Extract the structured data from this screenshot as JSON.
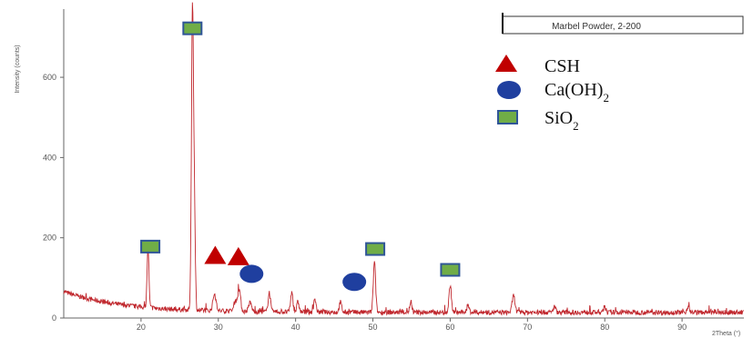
{
  "chart_data": {
    "type": "line",
    "title": "Marbel Powder, 2-200",
    "xlabel": "2Theta (°)",
    "ylabel": "Intensity (counts)",
    "xlim": [
      10,
      98
    ],
    "ylim": [
      0,
      770
    ],
    "xticks": [
      20,
      30,
      40,
      50,
      60,
      70,
      80,
      90
    ],
    "yticks": [
      0,
      200,
      400,
      600
    ],
    "grid": false,
    "legend_position": "top-right",
    "colors": {
      "trace": "#c0272d",
      "csh": "#c00000",
      "caoh2": "#1f3f9f",
      "sio2_fill": "#70ad47",
      "sio2_border": "#2f5597"
    },
    "legend": [
      {
        "marker": "triangle",
        "label": "CSH",
        "sub": ""
      },
      {
        "marker": "circle",
        "label": "Ca(OH)",
        "sub": "2"
      },
      {
        "marker": "square",
        "label": "SiO",
        "sub": "2"
      }
    ],
    "peaks": [
      {
        "x": 20.9,
        "y": 150,
        "w": 0.12
      },
      {
        "x": 26.65,
        "y": 740,
        "w": 0.13
      },
      {
        "x": 26.9,
        "y": 240,
        "w": 0.12
      },
      {
        "x": 29.5,
        "y": 42,
        "w": 0.2
      },
      {
        "x": 32.2,
        "y": 25,
        "w": 0.2
      },
      {
        "x": 32.7,
        "y": 55,
        "w": 0.18
      },
      {
        "x": 34.1,
        "y": 22,
        "w": 0.2
      },
      {
        "x": 36.6,
        "y": 48,
        "w": 0.15
      },
      {
        "x": 39.5,
        "y": 48,
        "w": 0.15
      },
      {
        "x": 40.3,
        "y": 25,
        "w": 0.15
      },
      {
        "x": 42.5,
        "y": 32,
        "w": 0.15
      },
      {
        "x": 45.8,
        "y": 25,
        "w": 0.15
      },
      {
        "x": 50.2,
        "y": 125,
        "w": 0.15
      },
      {
        "x": 54.9,
        "y": 22,
        "w": 0.15
      },
      {
        "x": 60.0,
        "y": 68,
        "w": 0.15
      },
      {
        "x": 62.3,
        "y": 18,
        "w": 0.15
      },
      {
        "x": 68.2,
        "y": 42,
        "w": 0.18
      },
      {
        "x": 73.5,
        "y": 15,
        "w": 0.15
      },
      {
        "x": 80.0,
        "y": 12,
        "w": 0.15
      },
      {
        "x": 90.8,
        "y": 16,
        "w": 0.15
      }
    ],
    "markers": [
      {
        "type": "square",
        "x": 26.65,
        "y": 722
      },
      {
        "type": "square",
        "x": 21.2,
        "y": 178
      },
      {
        "type": "triangle",
        "x": 29.6,
        "y": 155
      },
      {
        "type": "triangle",
        "x": 32.6,
        "y": 152
      },
      {
        "type": "circle",
        "x": 34.3,
        "y": 110
      },
      {
        "type": "circle",
        "x": 47.6,
        "y": 90
      },
      {
        "type": "square",
        "x": 50.3,
        "y": 172
      },
      {
        "type": "square",
        "x": 60.0,
        "y": 120
      }
    ]
  }
}
